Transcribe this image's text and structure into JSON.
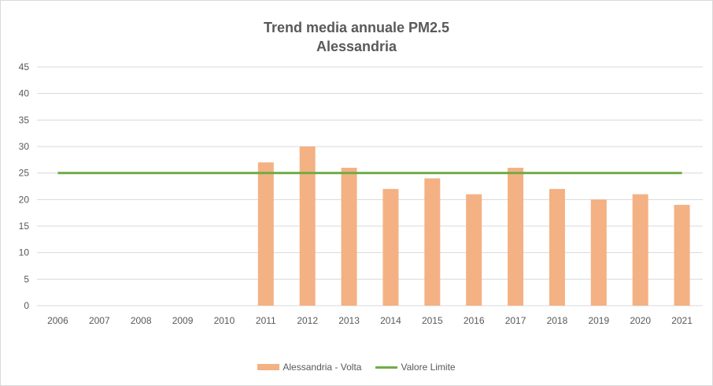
{
  "chart_data": {
    "type": "bar",
    "title": "Trend media annuale PM2.5",
    "subtitle": "Alessandria",
    "categories": [
      "2006",
      "2007",
      "2008",
      "2009",
      "2010",
      "2011",
      "2012",
      "2013",
      "2014",
      "2015",
      "2016",
      "2017",
      "2018",
      "2019",
      "2020",
      "2021"
    ],
    "series": [
      {
        "name": "Alessandria - Volta",
        "type": "bar",
        "color": "#F4B183",
        "values": [
          null,
          null,
          null,
          null,
          null,
          27,
          30,
          26,
          22,
          24,
          21,
          26,
          22,
          20,
          21,
          19
        ]
      },
      {
        "name": "Valore Limite",
        "type": "line",
        "color": "#70AD47",
        "values": [
          25,
          25,
          25,
          25,
          25,
          25,
          25,
          25,
          25,
          25,
          25,
          25,
          25,
          25,
          25,
          25
        ]
      }
    ],
    "ylim": [
      0,
      45
    ],
    "yticks": [
      0,
      5,
      10,
      15,
      20,
      25,
      30,
      35,
      40,
      45
    ],
    "grid": true,
    "legend": "bottom"
  }
}
